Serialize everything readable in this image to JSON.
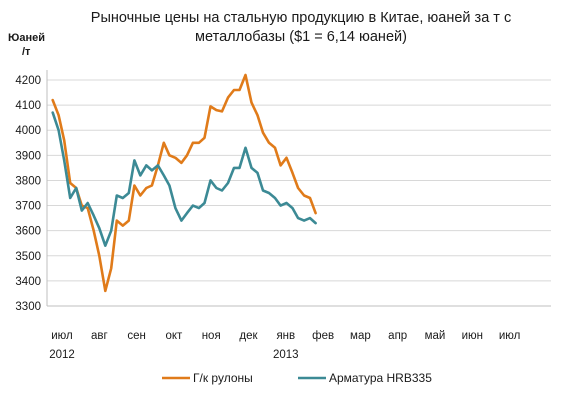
{
  "chart_data": {
    "type": "line",
    "title": [
      "Рыночные цены на стальную продукцию в Китае, юаней за т с",
      "металлобазы ($1 = 6,14 юаней)"
    ],
    "ylabel": [
      "Юаней",
      "/т"
    ],
    "xlabel": "",
    "ylim": [
      3300,
      4250
    ],
    "yticks": [
      3300,
      3400,
      3500,
      3600,
      3700,
      3800,
      3900,
      4000,
      4100,
      4200
    ],
    "xlim": [
      0,
      12
    ],
    "xticks": [
      {
        "x": 0,
        "label": "июл",
        "sub": "2012"
      },
      {
        "x": 1,
        "label": "авг",
        "sub": ""
      },
      {
        "x": 2,
        "label": "сен",
        "sub": ""
      },
      {
        "x": 3,
        "label": "окт",
        "sub": ""
      },
      {
        "x": 4,
        "label": "ноя",
        "sub": ""
      },
      {
        "x": 5,
        "label": "дек",
        "sub": ""
      },
      {
        "x": 6,
        "label": "янв",
        "sub": "2013"
      },
      {
        "x": 7,
        "label": "фев",
        "sub": ""
      },
      {
        "x": 8,
        "label": "мар",
        "sub": ""
      },
      {
        "x": 9,
        "label": "апр",
        "sub": ""
      },
      {
        "x": 10,
        "label": "май",
        "sub": ""
      },
      {
        "x": 11,
        "label": "июн",
        "sub": ""
      },
      {
        "x": 12,
        "label": "июл",
        "sub": ""
      }
    ],
    "grid": "horizontal",
    "legend_position": "bottom",
    "series": [
      {
        "name": "Г/к рулоны",
        "color": "#E07B1A",
        "points": [
          [
            -0.25,
            4120
          ],
          [
            -0.09,
            4060
          ],
          [
            0.06,
            3960
          ],
          [
            0.22,
            3790
          ],
          [
            0.38,
            3770
          ],
          [
            0.53,
            3700
          ],
          [
            0.69,
            3690
          ],
          [
            0.85,
            3600
          ],
          [
            1.0,
            3500
          ],
          [
            1.16,
            3360
          ],
          [
            1.32,
            3450
          ],
          [
            1.47,
            3640
          ],
          [
            1.63,
            3620
          ],
          [
            1.79,
            3640
          ],
          [
            1.94,
            3780
          ],
          [
            2.1,
            3740
          ],
          [
            2.26,
            3770
          ],
          [
            2.41,
            3780
          ],
          [
            2.57,
            3860
          ],
          [
            2.73,
            3950
          ],
          [
            2.88,
            3900
          ],
          [
            3.04,
            3890
          ],
          [
            3.2,
            3870
          ],
          [
            3.35,
            3900
          ],
          [
            3.51,
            3950
          ],
          [
            3.67,
            3950
          ],
          [
            3.82,
            3970
          ],
          [
            3.98,
            4095
          ],
          [
            4.14,
            4080
          ],
          [
            4.29,
            4075
          ],
          [
            4.45,
            4130
          ],
          [
            4.61,
            4160
          ],
          [
            4.76,
            4160
          ],
          [
            4.92,
            4220
          ],
          [
            5.08,
            4110
          ],
          [
            5.24,
            4060
          ],
          [
            5.39,
            3990
          ],
          [
            5.55,
            3950
          ],
          [
            5.71,
            3930
          ],
          [
            5.86,
            3860
          ],
          [
            6.02,
            3890
          ],
          [
            6.18,
            3830
          ],
          [
            6.33,
            3770
          ],
          [
            6.49,
            3740
          ],
          [
            6.65,
            3730
          ],
          [
            6.8,
            3670
          ]
        ]
      },
      {
        "name": "Арматура HRB335",
        "color": "#3C8A95",
        "points": [
          [
            -0.25,
            4070
          ],
          [
            -0.09,
            4000
          ],
          [
            0.06,
            3880
          ],
          [
            0.22,
            3730
          ],
          [
            0.38,
            3770
          ],
          [
            0.53,
            3680
          ],
          [
            0.69,
            3710
          ],
          [
            0.85,
            3660
          ],
          [
            1.0,
            3610
          ],
          [
            1.16,
            3540
          ],
          [
            1.32,
            3600
          ],
          [
            1.47,
            3740
          ],
          [
            1.63,
            3730
          ],
          [
            1.79,
            3750
          ],
          [
            1.94,
            3880
          ],
          [
            2.1,
            3820
          ],
          [
            2.26,
            3860
          ],
          [
            2.41,
            3840
          ],
          [
            2.57,
            3860
          ],
          [
            2.73,
            3820
          ],
          [
            2.88,
            3780
          ],
          [
            3.04,
            3690
          ],
          [
            3.2,
            3640
          ],
          [
            3.35,
            3670
          ],
          [
            3.51,
            3700
          ],
          [
            3.67,
            3690
          ],
          [
            3.82,
            3710
          ],
          [
            3.98,
            3800
          ],
          [
            4.14,
            3770
          ],
          [
            4.29,
            3760
          ],
          [
            4.45,
            3790
          ],
          [
            4.61,
            3850
          ],
          [
            4.76,
            3850
          ],
          [
            4.92,
            3930
          ],
          [
            5.08,
            3850
          ],
          [
            5.24,
            3830
          ],
          [
            5.39,
            3760
          ],
          [
            5.55,
            3750
          ],
          [
            5.71,
            3730
          ],
          [
            5.86,
            3700
          ],
          [
            6.02,
            3710
          ],
          [
            6.18,
            3690
          ],
          [
            6.33,
            3650
          ],
          [
            6.49,
            3640
          ],
          [
            6.65,
            3650
          ],
          [
            6.8,
            3630
          ]
        ]
      }
    ]
  }
}
